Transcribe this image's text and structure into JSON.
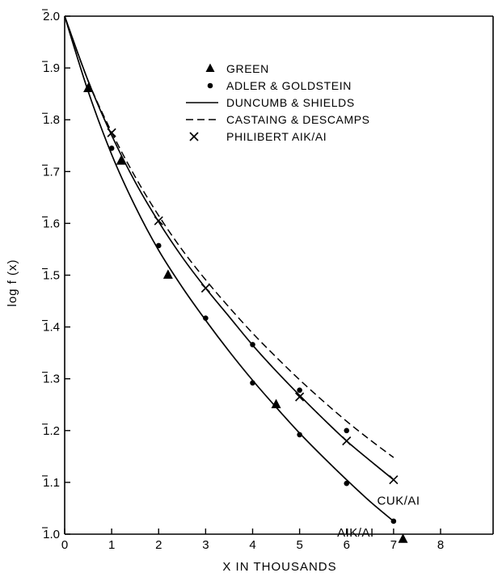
{
  "chart_data": {
    "type": "line",
    "xlabel": "X IN THOUSANDS",
    "ylabel": "log f (x)",
    "xlim": [
      0,
      8
    ],
    "ylim": [
      1.0,
      2.0
    ],
    "x_ticks": [
      "0",
      "1",
      "2",
      "3",
      "4",
      "5",
      "6",
      "7",
      "8"
    ],
    "y_ticks": [
      "1.0",
      "1.1",
      "1.2",
      "1.3",
      "1.4",
      "1.5",
      "1.6",
      "1.7",
      "1.8",
      "1.9",
      "2.0"
    ],
    "y_tick_note": "bar over leading digit (characteristic notation)",
    "legend_position": "upper-center",
    "series": [
      {
        "name": "GREEN",
        "style": "triangle-marker",
        "x": [
          0.5,
          1.2,
          2.2,
          4.5,
          7.2
        ],
        "y": [
          1.86,
          1.72,
          1.5,
          1.25,
          0.99
        ]
      },
      {
        "name": "ADLER & GOLDSTEIN",
        "style": "dot-marker",
        "x": [
          1.0,
          2.0,
          3.0,
          4.0,
          5.0,
          6.0,
          7.0,
          4.0,
          5.0,
          6.0
        ],
        "y": [
          1.745,
          1.557,
          1.417,
          1.292,
          1.192,
          1.098,
          1.025,
          1.366,
          1.278,
          1.2
        ]
      },
      {
        "name": "DUNCUMB & SHIELDS",
        "style": "solid-line",
        "curves": [
          {
            "label": "AlK/Al",
            "x": [
              0,
              0.5,
              1,
              1.5,
              2,
              2.5,
              3,
              3.5,
              4,
              4.5,
              5,
              5.5,
              6,
              6.5,
              7
            ],
            "y": [
              2.0,
              1.855,
              1.733,
              1.633,
              1.548,
              1.477,
              1.413,
              1.353,
              1.297,
              1.245,
              1.195,
              1.149,
              1.105,
              1.063,
              1.025
            ]
          },
          {
            "label": "CuK/Al",
            "x": [
              0,
              0.5,
              1,
              1.5,
              2,
              2.5,
              3,
              3.5,
              4,
              4.5,
              5,
              5.5,
              6,
              6.5,
              7
            ],
            "y": [
              2.0,
              1.875,
              1.77,
              1.68,
              1.603,
              1.535,
              1.475,
              1.42,
              1.365,
              1.315,
              1.268,
              1.223,
              1.18,
              1.142,
              1.105
            ]
          }
        ]
      },
      {
        "name": "CASTAING & DESCAMPS",
        "style": "dashed-line",
        "x": [
          0,
          0.5,
          1,
          1.5,
          2,
          2.5,
          3,
          3.5,
          4,
          4.5,
          5,
          5.5,
          6,
          6.5,
          7
        ],
        "y": [
          2.0,
          1.875,
          1.776,
          1.69,
          1.615,
          1.549,
          1.491,
          1.438,
          1.388,
          1.342,
          1.298,
          1.257,
          1.218,
          1.182,
          1.148
        ]
      },
      {
        "name": "PHILIBERT AIK/AI",
        "style": "x-marker",
        "x": [
          1.0,
          2.0,
          3.0,
          5.0,
          6.0,
          7.0
        ],
        "y": [
          1.775,
          1.605,
          1.475,
          1.265,
          1.18,
          1.105
        ]
      }
    ],
    "annotations": [
      {
        "text": "CUK/AI",
        "x": 6.65,
        "y": 1.057
      },
      {
        "text": "AIK/AI",
        "x": 5.8,
        "y": 0.995
      }
    ]
  }
}
